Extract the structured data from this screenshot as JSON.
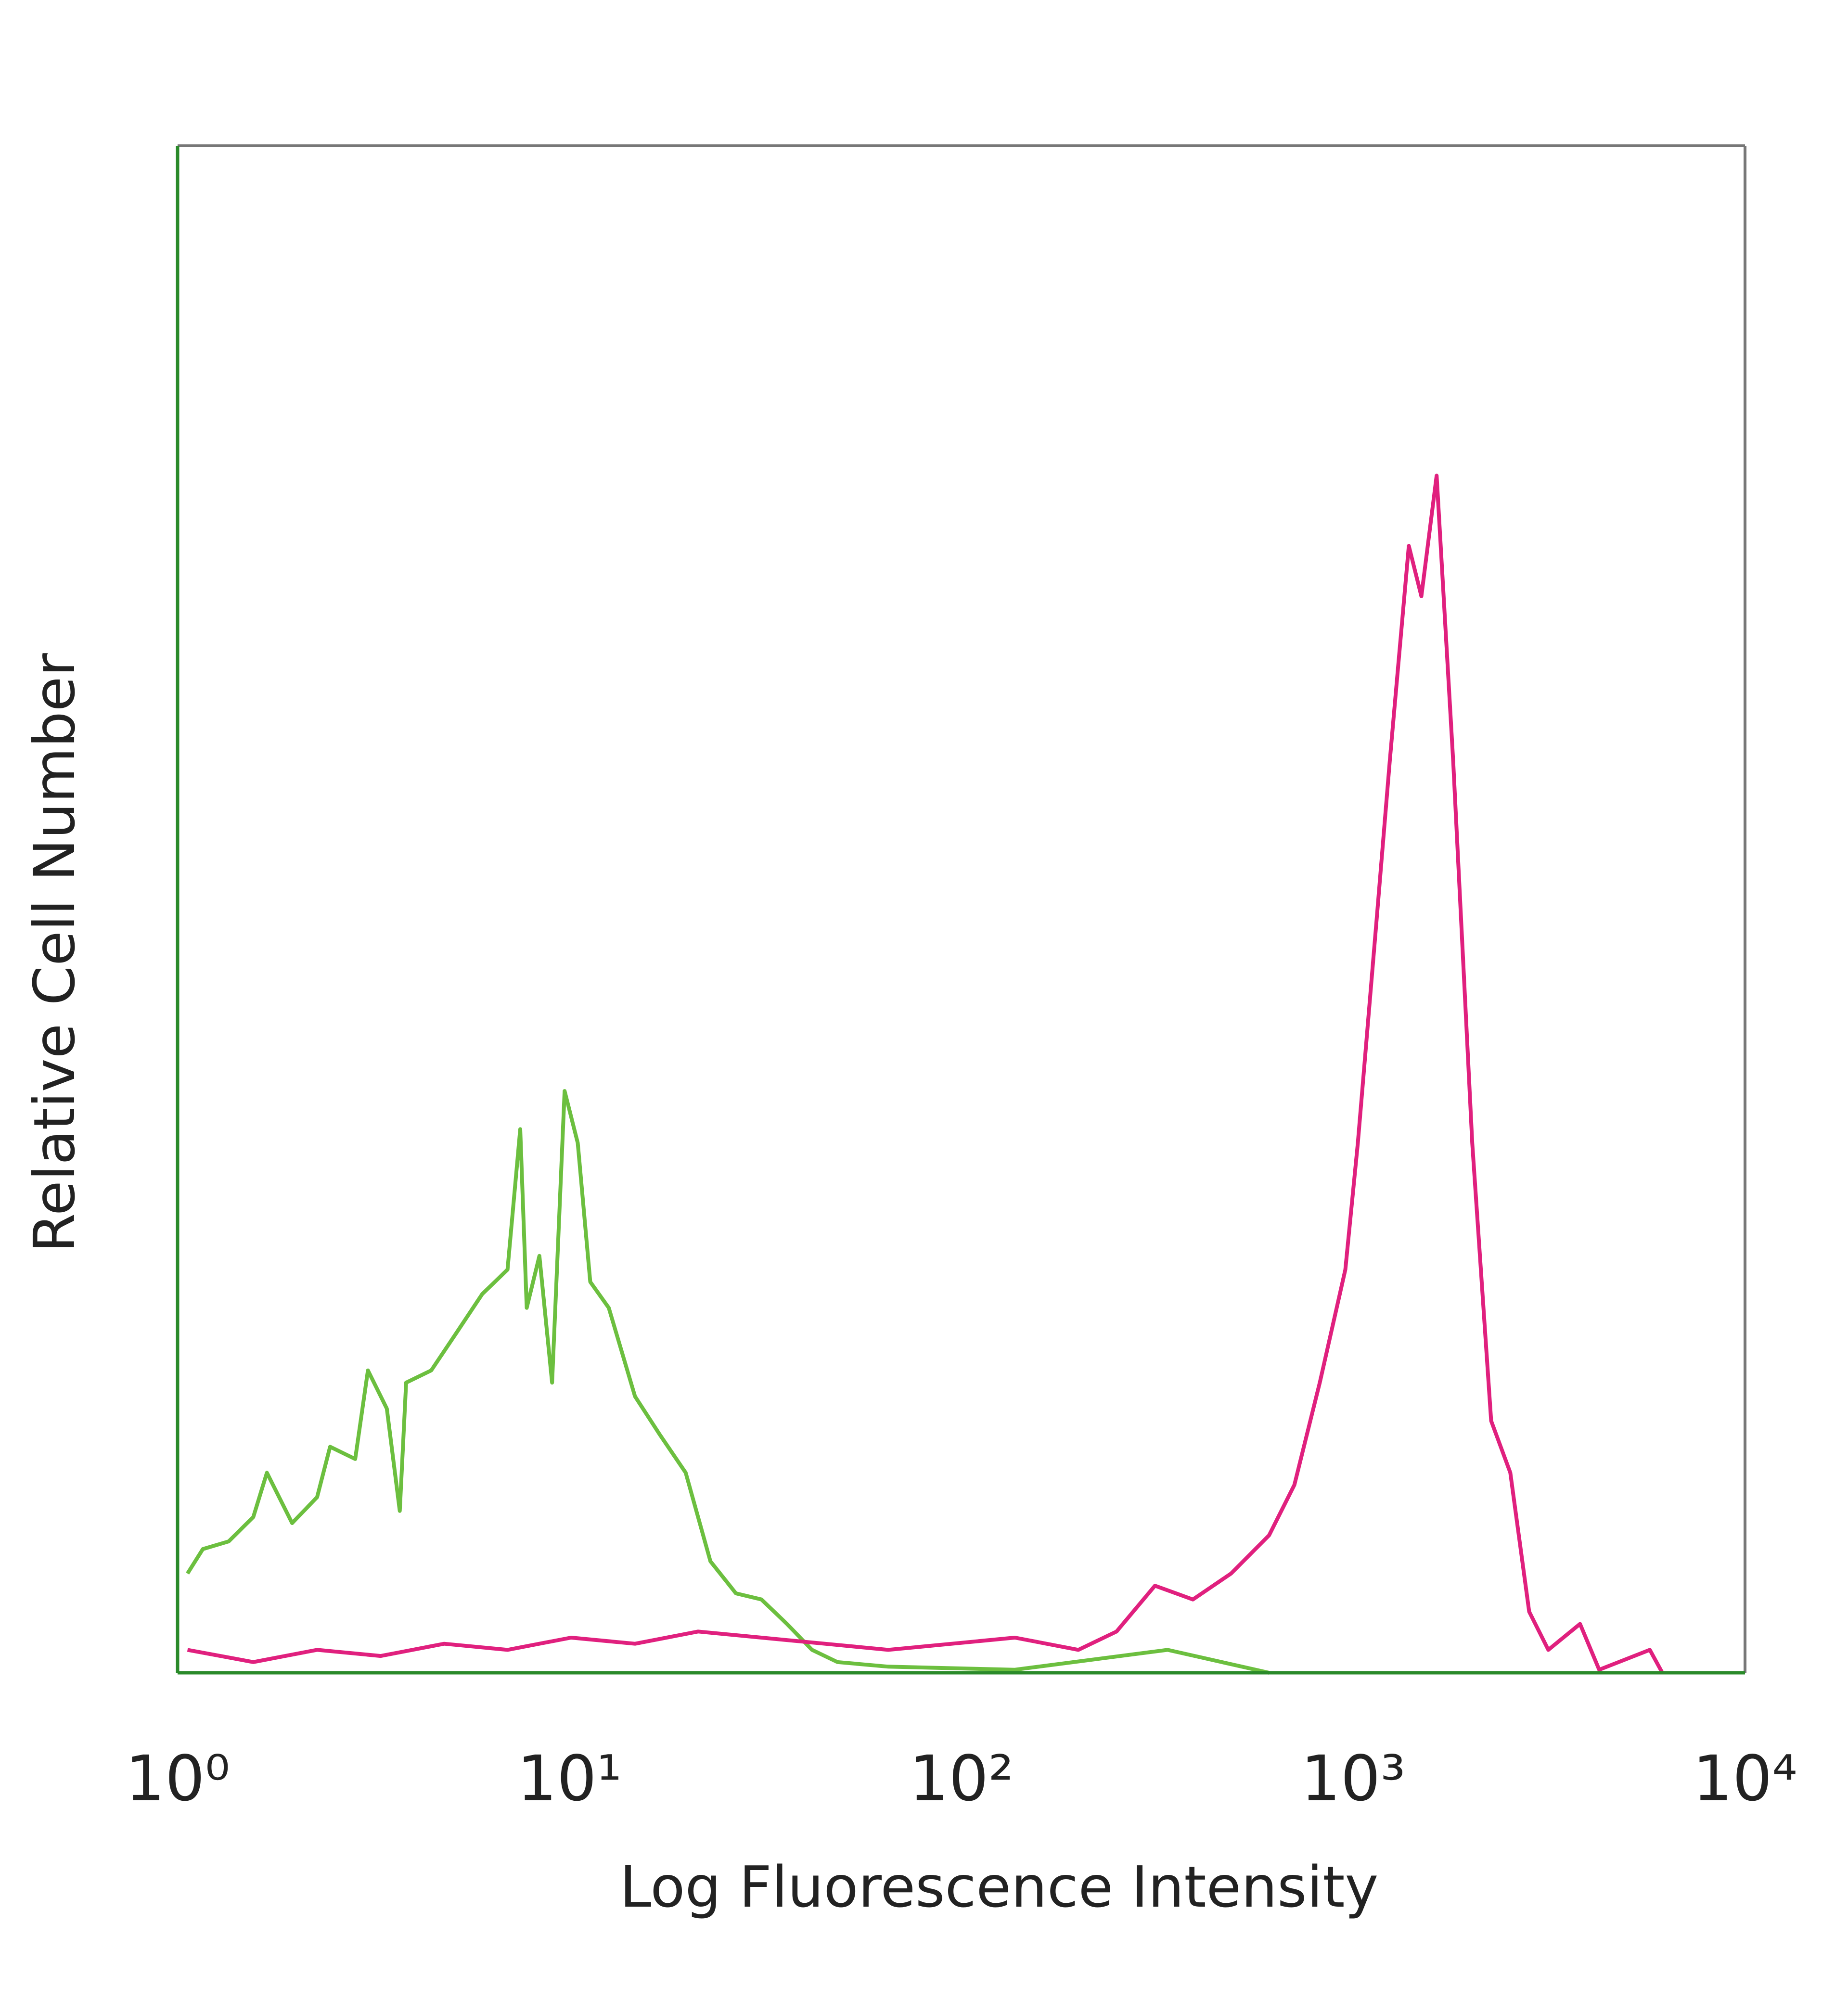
{
  "chart_data": {
    "type": "line",
    "x_label": "Log Fluorescence Intensity",
    "y_label": "Relative Cell Number",
    "xscale": "log",
    "xlim": [
      1,
      10000
    ],
    "xticks": [
      {
        "value": 1,
        "label": "10⁰"
      },
      {
        "value": 10,
        "label": "10¹"
      },
      {
        "value": 100,
        "label": "10²"
      },
      {
        "value": 1000,
        "label": "10³"
      },
      {
        "value": 10000,
        "label": "10⁴"
      }
    ],
    "ylim": [
      0,
      100
    ],
    "grid": false,
    "series": [
      {
        "color": "#6cbf3f",
        "x": [
          1.06,
          1.16,
          1.35,
          1.56,
          1.69,
          1.96,
          2.27,
          2.45,
          2.84,
          3.06,
          3.42,
          3.69,
          3.83,
          4.44,
          5.16,
          5.99,
          6.95,
          7.49,
          7.78,
          8.38,
          9.03,
          9.72,
          10.5,
          11.3,
          12.6,
          14.7,
          17.0,
          19.8,
          22.9,
          26.6,
          30.9,
          35.9,
          41.6,
          48.3,
          65.1,
          137,
          336,
          610
        ],
        "values": [
          6.5,
          8.1,
          8.6,
          10.2,
          13.1,
          9.8,
          11.5,
          14.8,
          14.0,
          19.8,
          17.3,
          10.6,
          19.0,
          19.8,
          22.3,
          24.8,
          26.4,
          35.6,
          23.9,
          27.3,
          19.0,
          38.1,
          34.7,
          25.6,
          23.9,
          18.1,
          15.6,
          13.1,
          7.3,
          5.2,
          4.8,
          3.2,
          1.5,
          0.7,
          0.4,
          0.2,
          1.5,
          0
        ]
      },
      {
        "color": "#e0207e",
        "x": [
          1.06,
          1.56,
          2.27,
          3.3,
          4.79,
          6.95,
          10.1,
          14.7,
          21.3,
          30.9,
          44.9,
          65.1,
          94.6,
          137,
          199,
          249,
          312,
          390,
          488,
          610,
          708,
          822,
          955,
          1028,
          1151,
          1240,
          1387,
          1493,
          1633,
          1800,
          2013,
          2250,
          2518,
          2813,
          3148,
          3793,
          4245,
          5715,
          6152
        ],
        "values": [
          1.5,
          0.7,
          1.5,
          1.1,
          1.9,
          1.5,
          2.3,
          1.9,
          2.7,
          2.3,
          1.9,
          1.5,
          1.9,
          2.3,
          1.5,
          2.7,
          5.7,
          4.8,
          6.5,
          9.0,
          12.3,
          19.0,
          26.4,
          34.7,
          49.7,
          59.7,
          73.8,
          70.5,
          78.4,
          59.7,
          34.7,
          16.5,
          13.1,
          4.0,
          1.5,
          3.2,
          0.2,
          1.5,
          0
        ]
      }
    ]
  }
}
